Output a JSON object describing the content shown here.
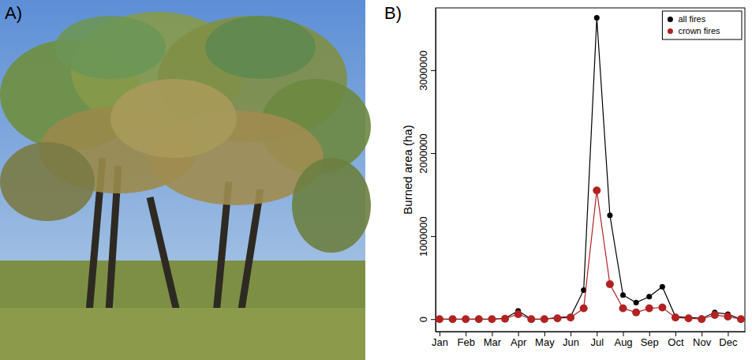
{
  "photo": {
    "label": "A)"
  },
  "chart_data": {
    "type": "line",
    "panel": "B)",
    "y_label": "Burned area (ha)",
    "categories": [
      "Jan",
      null,
      "Feb",
      null,
      "Mar",
      null,
      "Apr",
      null,
      "May",
      null,
      "Jun",
      null,
      "Jul",
      null,
      "Aug",
      null,
      "Sep",
      null,
      "Oct",
      null,
      "Nov",
      null,
      "Dec",
      null
    ],
    "series": [
      {
        "name": "all fires",
        "color": "#000000",
        "marker": "circle",
        "values": [
          0,
          0,
          0,
          0,
          0,
          10000,
          100000,
          0,
          0,
          20000,
          30000,
          350000,
          3630000,
          1250000,
          290000,
          200000,
          270000,
          390000,
          30000,
          20000,
          10000,
          80000,
          60000,
          0
        ]
      },
      {
        "name": "crown fires",
        "color": "#b22222",
        "marker": "circle",
        "values": [
          0,
          0,
          0,
          0,
          0,
          5000,
          60000,
          0,
          0,
          10000,
          20000,
          130000,
          1550000,
          420000,
          130000,
          80000,
          130000,
          140000,
          20000,
          10000,
          0,
          50000,
          30000,
          0
        ]
      }
    ],
    "ylim": [
      -150000,
      3750000
    ],
    "yticks": [
      0,
      1000000,
      2000000,
      3000000
    ],
    "legend": "top-right"
  }
}
